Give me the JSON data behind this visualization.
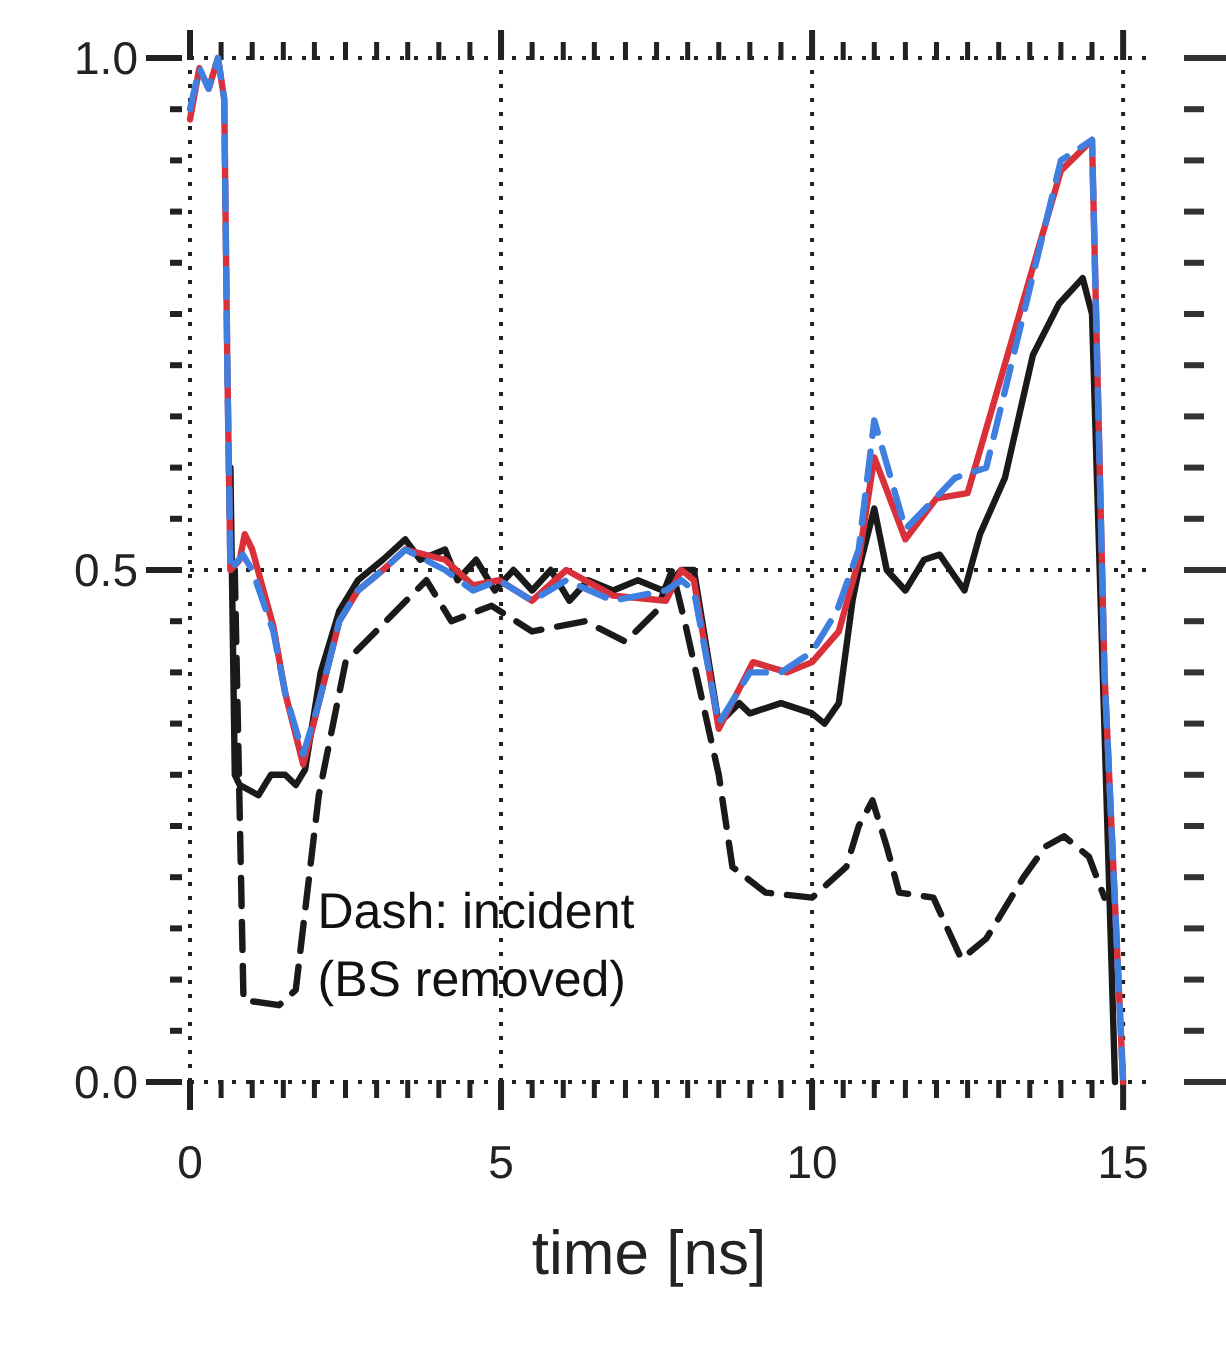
{
  "chart_data": {
    "type": "line",
    "xlabel": "time  [ns]",
    "xlim": [
      0,
      15.4
    ],
    "ylim": [
      0,
      1.0
    ],
    "xticks": [
      0,
      {
        "value": 0.5,
        "label": null
      },
      {
        "value": 1,
        "label": null
      },
      {
        "value": 1.5,
        "label": null
      },
      {
        "value": 2,
        "label": null
      },
      {
        "value": 2.5,
        "label": null
      },
      {
        "value": 3,
        "label": null
      },
      {
        "value": 3.5,
        "label": null
      },
      {
        "value": 4,
        "label": null
      },
      {
        "value": 4.5,
        "label": null
      },
      5,
      {
        "value": 5.5,
        "label": null
      },
      {
        "value": 6,
        "label": null
      },
      {
        "value": 6.5,
        "label": null
      },
      {
        "value": 7,
        "label": null
      },
      {
        "value": 7.5,
        "label": null
      },
      {
        "value": 8,
        "label": null
      },
      {
        "value": 8.5,
        "label": null
      },
      {
        "value": 9,
        "label": null
      },
      {
        "value": 9.5,
        "label": null
      },
      10,
      {
        "value": 10.5,
        "label": null
      },
      {
        "value": 11,
        "label": null
      },
      {
        "value": 11.5,
        "label": null
      },
      {
        "value": 12,
        "label": null
      },
      {
        "value": 12.5,
        "label": null
      },
      {
        "value": 13,
        "label": null
      },
      {
        "value": 13.5,
        "label": null
      },
      {
        "value": 14,
        "label": null
      },
      {
        "value": 14.5,
        "label": null
      },
      15
    ],
    "yticks": [
      {
        "value": 0,
        "label": "0.0"
      },
      {
        "value": 0.05,
        "label": null
      },
      {
        "value": 0.1,
        "label": null
      },
      {
        "value": 0.15,
        "label": null
      },
      {
        "value": 0.2,
        "label": null
      },
      {
        "value": 0.25,
        "label": null
      },
      {
        "value": 0.3,
        "label": null
      },
      {
        "value": 0.35,
        "label": null
      },
      {
        "value": 0.4,
        "label": null
      },
      {
        "value": 0.45,
        "label": null
      },
      0.5,
      {
        "value": 0.55,
        "label": null
      },
      {
        "value": 0.6,
        "label": null
      },
      {
        "value": 0.65,
        "label": null
      },
      {
        "value": 0.7,
        "label": null
      },
      {
        "value": 0.75,
        "label": null
      },
      {
        "value": 0.8,
        "label": null
      },
      {
        "value": 0.85,
        "label": null
      },
      {
        "value": 0.9,
        "label": null
      },
      {
        "value": 0.95,
        "label": null
      },
      {
        "value": 1.0,
        "label": "1.0"
      }
    ],
    "grid": true,
    "marker": "none",
    "annotations": [
      "Dash: incident\n(BS removed)"
    ],
    "series": [
      {
        "color": "#1a1a1a",
        "line_style": "dashed",
        "x": [
          0.72,
          0.86,
          1.43,
          1.7,
          2.07,
          2.5,
          3.15,
          3.8,
          4.2,
          4.85,
          5.5,
          6.35,
          7.0,
          7.5,
          7.75,
          7.97,
          8.5,
          8.72,
          9.25,
          10.0,
          10.55,
          10.75,
          10.97,
          11.2,
          11.4,
          11.95,
          12.4,
          12.8,
          13.4,
          13.75,
          14.05,
          14.45,
          14.7
        ],
        "values": [
          0.5,
          0.08,
          0.075,
          0.09,
          0.28,
          0.41,
          0.45,
          0.49,
          0.45,
          0.465,
          0.44,
          0.45,
          0.43,
          0.46,
          0.5,
          0.445,
          0.3,
          0.21,
          0.185,
          0.18,
          0.21,
          0.25,
          0.275,
          0.23,
          0.185,
          0.18,
          0.12,
          0.14,
          0.2,
          0.23,
          0.24,
          0.22,
          0.18
        ]
      },
      {
        "color": "#1a1a1a",
        "line_style": "solid",
        "x": [
          0.65,
          0.72,
          0.8,
          1.1,
          1.3,
          1.53,
          1.7,
          1.85,
          2.1,
          2.4,
          2.7,
          3.1,
          3.46,
          3.7,
          4.1,
          4.3,
          4.6,
          4.9,
          5.2,
          5.5,
          5.8,
          6.1,
          6.4,
          6.8,
          7.2,
          7.6,
          7.9,
          8.1,
          8.5,
          8.83,
          9.0,
          9.5,
          10.0,
          10.2,
          10.43,
          10.65,
          10.75,
          11.0,
          11.2,
          11.5,
          11.8,
          12.05,
          12.45,
          12.7,
          13.1,
          13.55,
          13.97,
          14.35,
          14.5,
          14.87
        ],
        "values": [
          0.6,
          0.3,
          0.29,
          0.28,
          0.3,
          0.3,
          0.29,
          0.305,
          0.4,
          0.46,
          0.49,
          0.51,
          0.53,
          0.51,
          0.52,
          0.49,
          0.51,
          0.48,
          0.5,
          0.48,
          0.5,
          0.47,
          0.49,
          0.48,
          0.49,
          0.48,
          0.5,
          0.5,
          0.35,
          0.37,
          0.36,
          0.37,
          0.36,
          0.35,
          0.37,
          0.47,
          0.5,
          0.56,
          0.5,
          0.48,
          0.51,
          0.515,
          0.48,
          0.535,
          0.59,
          0.71,
          0.76,
          0.785,
          0.75,
          0.0
        ]
      },
      {
        "color": "#d9303a",
        "line_style": "solid",
        "x": [
          0,
          0.15,
          0.3,
          0.45,
          0.55,
          0.6,
          0.65,
          0.8,
          0.88,
          1.0,
          1.34,
          1.53,
          1.82,
          2.07,
          2.4,
          2.7,
          3.1,
          3.46,
          4.1,
          4.55,
          4.97,
          5.5,
          6.05,
          6.8,
          7.65,
          7.9,
          8.1,
          8.5,
          9.05,
          9.6,
          10.0,
          10.43,
          10.75,
          11.0,
          11.5,
          12.0,
          12.5,
          14.0,
          14.5,
          14.7,
          15.0
        ],
        "values": [
          0.94,
          0.99,
          0.97,
          1.0,
          0.96,
          0.7,
          0.5,
          0.51,
          0.535,
          0.52,
          0.445,
          0.38,
          0.31,
          0.37,
          0.45,
          0.48,
          0.5,
          0.52,
          0.51,
          0.485,
          0.49,
          0.47,
          0.5,
          0.475,
          0.47,
          0.5,
          0.49,
          0.345,
          0.41,
          0.4,
          0.41,
          0.44,
          0.51,
          0.61,
          0.53,
          0.57,
          0.575,
          0.89,
          0.92,
          0.4,
          0.0
        ]
      },
      {
        "color": "#3f7fe0",
        "line_style": "dashed",
        "x": [
          0,
          0.15,
          0.3,
          0.45,
          0.55,
          0.6,
          0.65,
          0.85,
          1.0,
          1.34,
          1.53,
          1.82,
          2.07,
          2.4,
          2.7,
          3.1,
          3.46,
          4.1,
          4.55,
          4.97,
          5.5,
          6.05,
          6.8,
          7.65,
          7.9,
          8.1,
          8.5,
          9.0,
          9.5,
          10.0,
          10.4,
          10.75,
          11.0,
          11.5,
          12.3,
          12.8,
          14.0,
          14.5,
          14.7,
          15.0
        ],
        "values": [
          0.95,
          0.99,
          0.97,
          1.0,
          0.96,
          0.7,
          0.5,
          0.515,
          0.5,
          0.44,
          0.38,
          0.32,
          0.37,
          0.45,
          0.48,
          0.5,
          0.52,
          0.5,
          0.48,
          0.49,
          0.47,
          0.49,
          0.47,
          0.48,
          0.49,
          0.48,
          0.35,
          0.4,
          0.4,
          0.42,
          0.46,
          0.52,
          0.646,
          0.54,
          0.59,
          0.6,
          0.9,
          0.92,
          0.4,
          0.0
        ]
      }
    ]
  }
}
